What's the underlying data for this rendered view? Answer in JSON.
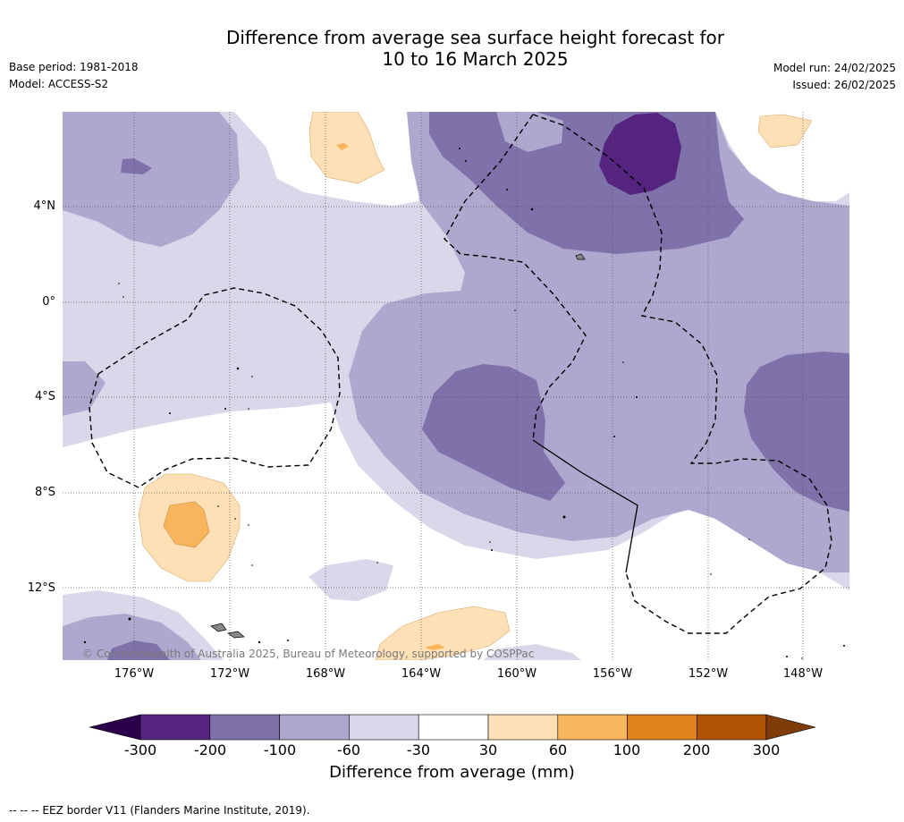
{
  "title": "Difference from average sea surface height forecast for\n10 to 16 March 2025",
  "meta": {
    "base_period": "Base period: 1981-2018",
    "model": "Model: ACCESS-S2",
    "model_run": "Model run: 24/02/2025",
    "issued": "Issued: 26/02/2025"
  },
  "axes": {
    "lat_labels": [
      "4°N",
      "0°",
      "4°S",
      "8°S",
      "12°S"
    ],
    "lon_labels": [
      "176°W",
      "172°W",
      "168°W",
      "164°W",
      "160°W",
      "156°W",
      "152°W",
      "148°W"
    ]
  },
  "map": {
    "copyright": "© Commonwealth of Australia 2025, Bureau of Meteorology, supported by COSPPac",
    "colors": {
      "neg_300_200": "#54247f",
      "neg_200_100": "#7f72ab",
      "neg_100_60": "#afa8ce",
      "neg_60_30": "#d8d8ea",
      "neutral": "#ffffff",
      "pos_30_60": "#fde0b5",
      "pos_60_100": "#f9b55c",
      "pos_100_200": "#e0821a",
      "pos_200_300": "#b05306",
      "extend_low": "#2d004b",
      "extend_high": "#7f3b08"
    }
  },
  "colorbar": {
    "labels": [
      "-300",
      "-200",
      "-100",
      "-60",
      "-30",
      "30",
      "60",
      "100",
      "200",
      "300"
    ],
    "title": "Difference from average (mm)"
  },
  "footnote": "--  --  -- EEZ border V11 (Flanders Marine Institute, 2019)."
}
